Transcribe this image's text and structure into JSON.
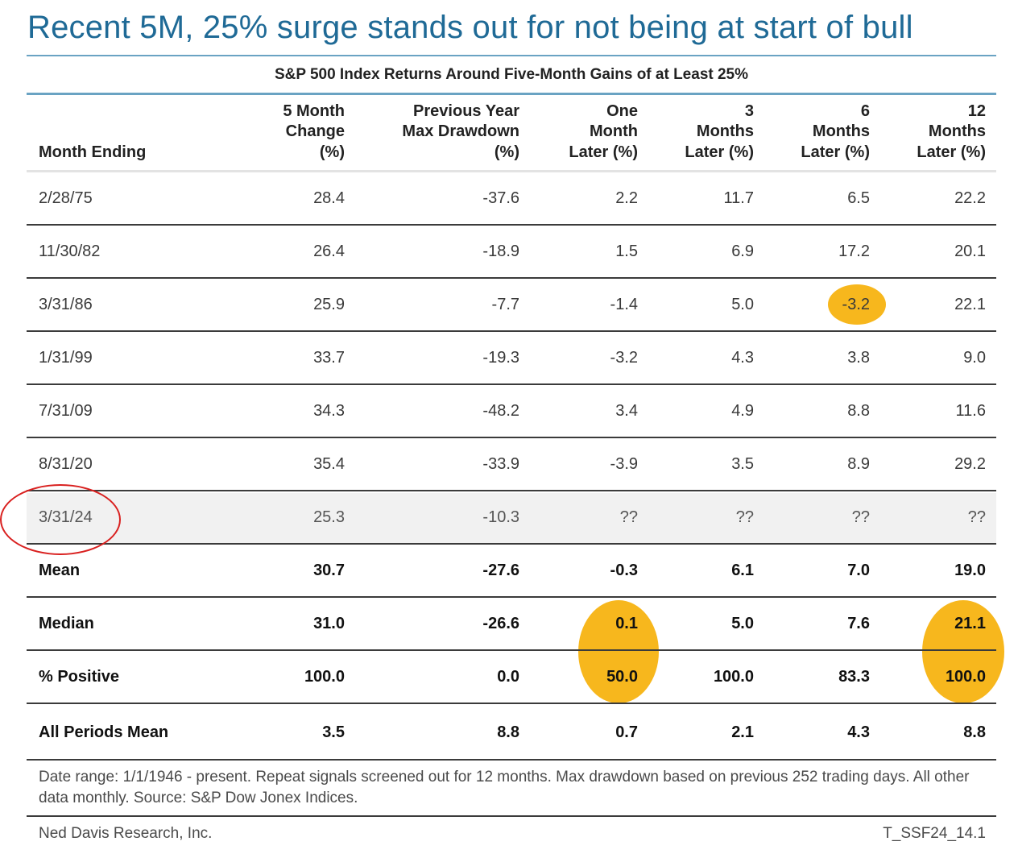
{
  "title": "Recent 5M, 25% surge stands out for not being at start of bull",
  "subtitle": "S&P 500 Index Returns Around Five-Month Gains of at Least 25%",
  "columns": [
    [
      "Month Ending"
    ],
    [
      "5 Month",
      "Change",
      "(%)"
    ],
    [
      "Previous Year",
      "Max Drawdown",
      "(%)"
    ],
    [
      "One",
      "Month",
      "Later (%)"
    ],
    [
      "3",
      "Months",
      "Later (%)"
    ],
    [
      "6",
      "Months",
      "Later (%)"
    ],
    [
      "12",
      "Months",
      "Later (%)"
    ]
  ],
  "rows": [
    [
      "2/28/75",
      "28.4",
      "-37.6",
      "2.2",
      "11.7",
      "6.5",
      "22.2"
    ],
    [
      "11/30/82",
      "26.4",
      "-18.9",
      "1.5",
      "6.9",
      "17.2",
      "20.1"
    ],
    [
      "3/31/86",
      "25.9",
      "-7.7",
      "-1.4",
      "5.0",
      "-3.2",
      "22.1"
    ],
    [
      "1/31/99",
      "33.7",
      "-19.3",
      "-3.2",
      "4.3",
      "3.8",
      "9.0"
    ],
    [
      "7/31/09",
      "34.3",
      "-48.2",
      "3.4",
      "4.9",
      "8.8",
      "11.6"
    ],
    [
      "8/31/20",
      "35.4",
      "-33.9",
      "-3.9",
      "3.5",
      "8.9",
      "29.2"
    ],
    [
      "3/31/24",
      "25.3",
      "-10.3",
      "??",
      "??",
      "??",
      "??"
    ]
  ],
  "summary": [
    [
      "Mean",
      "30.7",
      "-27.6",
      "-0.3",
      "6.1",
      "7.0",
      "19.0"
    ],
    [
      "Median",
      "31.0",
      "-26.6",
      "0.1",
      "5.0",
      "7.6",
      "21.1"
    ],
    [
      "% Positive",
      "100.0",
      "0.0",
      "50.0",
      "100.0",
      "83.3",
      "100.0"
    ],
    [
      "All Periods Mean",
      "3.5",
      "8.8",
      "0.7",
      "2.1",
      "4.3",
      "8.8"
    ]
  ],
  "footnote": "Date range: 1/1/1946 - present. Repeat signals screened out for 12 months. Max drawdown based on previous 252 trading days. All other data monthly. Source: S&P Dow Jonex Indices.",
  "credit": "Ned Davis Research, Inc.",
  "code": "T_SSF24_14.1",
  "colors": {
    "title": "#1f6a96",
    "rule": "#6aa3c3",
    "highlight": "#f7b71d",
    "circle": "#d9201f"
  }
}
